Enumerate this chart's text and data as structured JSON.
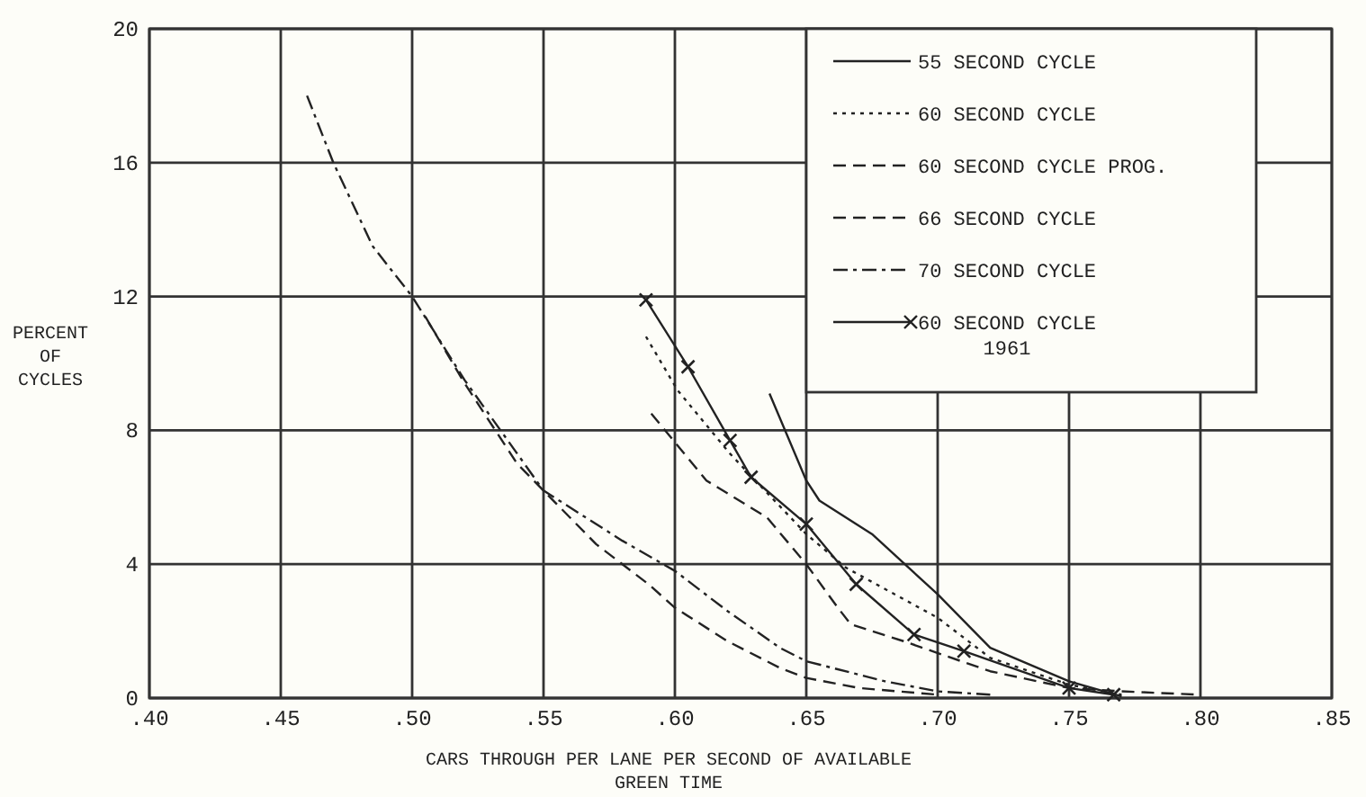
{
  "chart_data": {
    "type": "line",
    "xlabel": "CARS THROUGH PER LANE PER SECOND OF AVAILABLE\nGREEN TIME",
    "ylabel": "PERCENT\nOF\nCYCLES",
    "xlim": [
      0.4,
      0.85
    ],
    "xticks": [
      {
        "value": 0.4,
        "label": ".40"
      },
      {
        "value": 0.45,
        "label": ".45"
      },
      {
        "value": 0.5,
        "label": ".50"
      },
      {
        "value": 0.55,
        "label": ".55"
      },
      {
        "value": 0.6,
        "label": ".60"
      },
      {
        "value": 0.65,
        "label": ".65"
      },
      {
        "value": 0.7,
        "label": ".70"
      },
      {
        "value": 0.75,
        "label": ".75"
      },
      {
        "value": 0.8,
        "label": ".80"
      },
      {
        "value": 0.85,
        "label": ".85"
      }
    ],
    "ylim": [
      0,
      20
    ],
    "yticks": [
      0,
      4,
      8,
      12,
      16,
      20
    ],
    "grid": true,
    "legend": "top right",
    "series": [
      {
        "name": "55 SECOND CYCLE",
        "color": "#222222",
        "line_style": "solid",
        "marker": "none",
        "x": [
          0.636,
          0.65,
          0.655,
          0.675,
          0.7,
          0.72,
          0.75,
          0.77
        ],
        "values": [
          9.1,
          6.5,
          5.9,
          4.9,
          3.1,
          1.5,
          0.5,
          0.05
        ]
      },
      {
        "name": "60 SECOND CYCLE",
        "color": "#222222",
        "line_style": "dotted",
        "marker": "none",
        "x": [
          0.589,
          0.601,
          0.621,
          0.65,
          0.665,
          0.7,
          0.72,
          0.75,
          0.77
        ],
        "values": [
          10.8,
          9.2,
          7.3,
          4.9,
          3.9,
          2.4,
          1.2,
          0.4,
          0.1
        ]
      },
      {
        "name": "60 SECOND CYCLE PROG.",
        "color": "#222222",
        "line_style": "dashed",
        "marker": "none",
        "x": [
          0.591,
          0.612,
          0.635,
          0.65,
          0.662,
          0.667,
          0.687,
          0.72,
          0.75,
          0.77,
          0.8
        ],
        "values": [
          8.5,
          6.5,
          5.4,
          4.0,
          2.7,
          2.2,
          1.7,
          0.8,
          0.3,
          0.2,
          0.1
        ]
      },
      {
        "name": "66 SECOND CYCLE",
        "color": "#222222",
        "line_style": "dashed",
        "marker": "none",
        "x": [
          0.505,
          0.52,
          0.54,
          0.55,
          0.57,
          0.59,
          0.6,
          0.62,
          0.64,
          0.65,
          0.67,
          0.7
        ],
        "values": [
          11.4,
          9.4,
          7,
          6.2,
          4.6,
          3.4,
          2.7,
          1.7,
          0.9,
          0.6,
          0.3,
          0.1
        ]
      },
      {
        "name": "70 SECOND CYCLE",
        "color": "#222222",
        "line_style": "dashdot",
        "marker": "none",
        "x": [
          0.46,
          0.47,
          0.485,
          0.5,
          0.52,
          0.54,
          0.55,
          0.58,
          0.6,
          0.62,
          0.64,
          0.65,
          0.68,
          0.7,
          0.72
        ],
        "values": [
          18,
          16,
          13.5,
          12,
          9.5,
          7.3,
          6.2,
          4.7,
          3.8,
          2.6,
          1.5,
          1.1,
          0.5,
          0.2,
          0.1
        ]
      },
      {
        "name": "60 SECOND CYCLE\n1961",
        "color": "#222222",
        "line_style": "solid",
        "marker": "cross",
        "x": [
          0.589,
          0.605,
          0.621,
          0.629,
          0.65,
          0.669,
          0.691,
          0.71,
          0.75,
          0.767
        ],
        "values": [
          11.9,
          9.9,
          7.7,
          6.6,
          5.2,
          3.4,
          1.9,
          1.4,
          0.3,
          0.1
        ]
      }
    ]
  }
}
